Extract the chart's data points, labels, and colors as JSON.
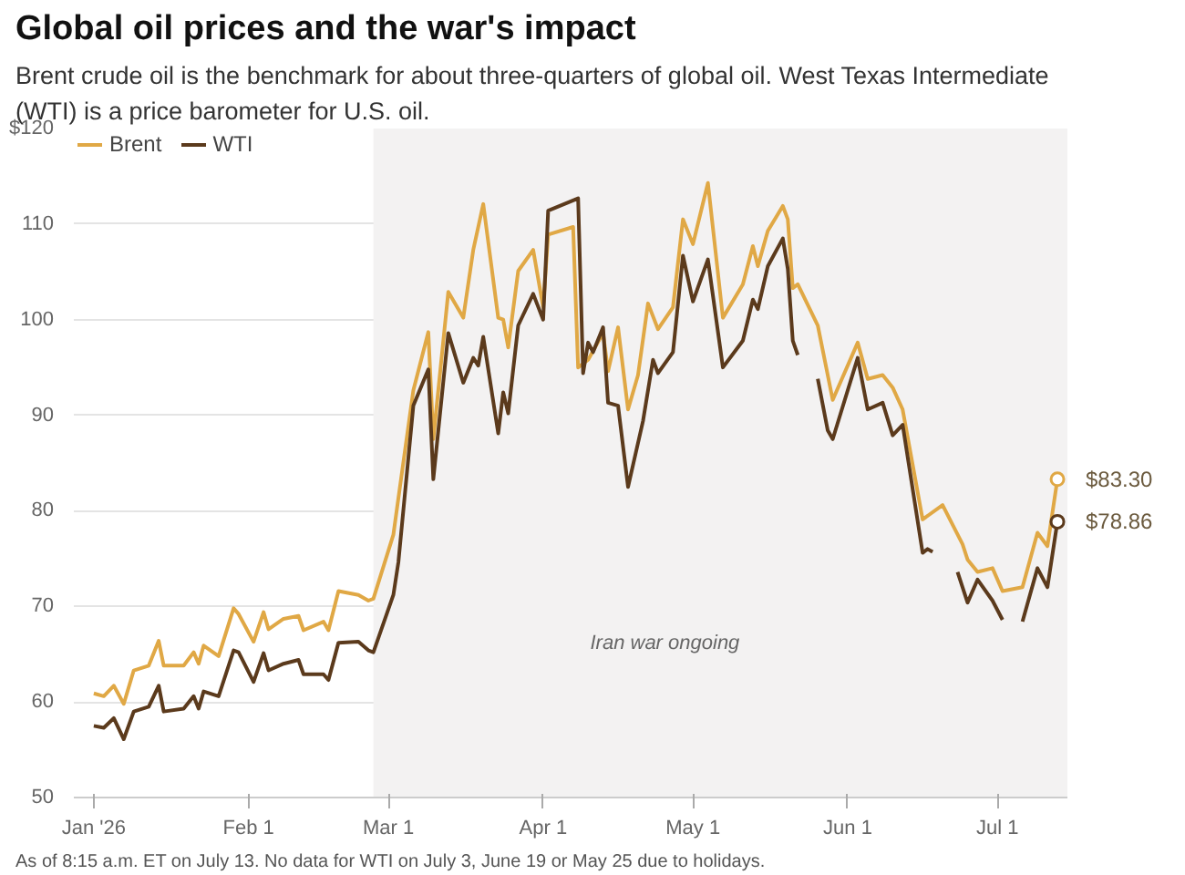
{
  "chart_data": {
    "type": "line",
    "title": "Global oil prices and the war's impact",
    "subtitle": "Brent crude oil is the benchmark for about three-quarters of global oil. West Texas Intermediate (WTI) is a price barometer for U.S. oil.",
    "xlim": [
      "2025-12-28",
      "2026-07-15"
    ],
    "xticks": [
      {
        "value": "2026-01-01",
        "label": "Jan '26"
      },
      {
        "value": "2026-02-01",
        "label": "Feb 1"
      },
      {
        "value": "2026-03-01",
        "label": "Mar 1"
      },
      {
        "value": "2026-04-01",
        "label": "Apr 1"
      },
      {
        "value": "2026-05-01",
        "label": "May 1"
      },
      {
        "value": "2026-06-01",
        "label": "Jun 1"
      },
      {
        "value": "2026-07-01",
        "label": "Jul 1"
      }
    ],
    "ylim": [
      50,
      120
    ],
    "yticks": [
      50,
      60,
      70,
      80,
      90,
      100,
      110,
      {
        "value": 120,
        "label": "$120"
      }
    ],
    "grid": "y",
    "legend": "top left",
    "line_style": "solid",
    "bands": [
      {
        "axis": "x",
        "from": "2026-02-26",
        "to": "2026-07-15",
        "label": "Iran war ongoing",
        "color": "#f3f2f2"
      }
    ],
    "series": [
      {
        "name": "Brent",
        "color": "#e0a845",
        "x": [
          "2026-01-01",
          "2026-01-03",
          "2026-01-05",
          "2026-01-07",
          "2026-01-09",
          "2026-01-12",
          "2026-01-14",
          "2026-01-15",
          "2026-01-19",
          "2026-01-21",
          "2026-01-22",
          "2026-01-23",
          "2026-01-26",
          "2026-01-29",
          "2026-01-30",
          "2026-02-02",
          "2026-02-04",
          "2026-02-05",
          "2026-02-08",
          "2026-02-11",
          "2026-02-12",
          "2026-02-16",
          "2026-02-17",
          "2026-02-19",
          "2026-02-23",
          "2026-02-25",
          "2026-02-26",
          "2026-03-02",
          "2026-03-03",
          "2026-03-06",
          "2026-03-09",
          "2026-03-10",
          "2026-03-13",
          "2026-03-16",
          "2026-03-18",
          "2026-03-20",
          "2026-03-23",
          "2026-03-24",
          "2026-03-25",
          "2026-03-27",
          "2026-03-30",
          "2026-04-01",
          "2026-04-02",
          "2026-04-07",
          "2026-04-08",
          "2026-04-10",
          "2026-04-13",
          "2026-04-14",
          "2026-04-16",
          "2026-04-18",
          "2026-04-20",
          "2026-04-22",
          "2026-04-24",
          "2026-04-27",
          "2026-04-29",
          "2026-05-01",
          "2026-05-04",
          "2026-05-07",
          "2026-05-11",
          "2026-05-13",
          "2026-05-14",
          "2026-05-16",
          "2026-05-19",
          "2026-05-20",
          "2026-05-21",
          "2026-05-22",
          "2026-05-26",
          "2026-05-29",
          "2026-06-03",
          "2026-06-05",
          "2026-06-08",
          "2026-06-10",
          "2026-06-12",
          "2026-06-16",
          "2026-06-20",
          "2026-06-24",
          "2026-06-25",
          "2026-06-27",
          "2026-06-30",
          "2026-07-02",
          "2026-07-06",
          "2026-07-09",
          "2026-07-11",
          "2026-07-13"
        ],
        "values": [
          60.9,
          60.6,
          61.7,
          59.8,
          63.3,
          63.8,
          66.4,
          63.8,
          63.8,
          65.2,
          64.0,
          65.9,
          64.8,
          69.8,
          69.2,
          66.3,
          69.4,
          67.6,
          68.7,
          69.0,
          67.5,
          68.4,
          67.5,
          71.6,
          71.2,
          70.6,
          70.8,
          77.5,
          81.3,
          92.6,
          98.7,
          87.5,
          102.9,
          100.2,
          107.3,
          112.1,
          100.2,
          100.0,
          97.1,
          105.1,
          107.3,
          101.3,
          108.9,
          109.7,
          95.0,
          95.8,
          98.6,
          94.6,
          99.2,
          90.6,
          94.2,
          101.7,
          99.0,
          101.3,
          110.5,
          107.9,
          114.3,
          100.2,
          103.7,
          107.7,
          105.6,
          109.3,
          111.9,
          110.5,
          103.3,
          103.7,
          99.4,
          91.6,
          97.6,
          93.8,
          94.2,
          92.9,
          90.6,
          79.1,
          80.6,
          76.5,
          74.9,
          73.6,
          74.0,
          71.6,
          72.0,
          77.7,
          76.3,
          83.3
        ]
      },
      {
        "name": "WTI",
        "color": "#5b3a1c",
        "x": [
          "2026-01-01",
          "2026-01-03",
          "2026-01-05",
          "2026-01-07",
          "2026-01-09",
          "2026-01-12",
          "2026-01-14",
          "2026-01-15",
          "2026-01-19",
          "2026-01-21",
          "2026-01-22",
          "2026-01-23",
          "2026-01-26",
          "2026-01-29",
          "2026-01-30",
          "2026-02-02",
          "2026-02-04",
          "2026-02-05",
          "2026-02-08",
          "2026-02-11",
          "2026-02-12",
          "2026-02-16",
          "2026-02-17",
          "2026-02-19",
          "2026-02-23",
          "2026-02-25",
          "2026-02-26",
          "2026-03-02",
          "2026-03-03",
          "2026-03-06",
          "2026-03-09",
          "2026-03-10",
          "2026-03-13",
          "2026-03-16",
          "2026-03-18",
          "2026-03-19",
          "2026-03-20",
          "2026-03-23",
          "2026-03-24",
          "2026-03-25",
          "2026-03-27",
          "2026-03-30",
          "2026-04-01",
          "2026-04-02",
          "2026-04-08",
          "2026-04-09",
          "2026-04-10",
          "2026-04-11",
          "2026-04-13",
          "2026-04-14",
          "2026-04-16",
          "2026-04-18",
          "2026-04-21",
          "2026-04-23",
          "2026-04-24",
          "2026-04-27",
          "2026-04-29",
          "2026-05-01",
          "2026-05-04",
          "2026-05-07",
          "2026-05-11",
          "2026-05-13",
          "2026-05-14",
          "2026-05-16",
          "2026-05-19",
          "2026-05-20",
          "2026-05-21",
          "2026-05-22",
          "2026-05-25",
          "2026-05-26",
          "2026-05-28",
          "2026-05-29",
          "2026-06-03",
          "2026-06-05",
          "2026-06-08",
          "2026-06-10",
          "2026-06-12",
          "2026-06-16",
          "2026-06-17",
          "2026-06-18",
          "2026-06-19",
          "2026-06-23",
          "2026-06-25",
          "2026-06-27",
          "2026-06-30",
          "2026-07-02",
          "2026-07-03",
          "2026-07-06",
          "2026-07-09",
          "2026-07-11",
          "2026-07-13"
        ],
        "values": [
          57.5,
          57.3,
          58.3,
          56.1,
          59.0,
          59.5,
          61.7,
          59.0,
          59.3,
          60.6,
          59.3,
          61.1,
          60.6,
          65.4,
          65.2,
          62.1,
          65.1,
          63.3,
          64.0,
          64.4,
          62.9,
          62.9,
          62.3,
          66.2,
          66.3,
          65.4,
          65.2,
          71.2,
          74.6,
          91.0,
          94.8,
          83.3,
          98.6,
          93.4,
          96.0,
          95.2,
          98.2,
          88.1,
          92.4,
          90.2,
          99.4,
          102.7,
          100.0,
          111.4,
          112.7,
          94.4,
          97.6,
          96.6,
          99.2,
          91.3,
          91.0,
          82.5,
          89.4,
          95.8,
          94.4,
          96.6,
          106.7,
          101.9,
          106.3,
          95.0,
          97.8,
          102.1,
          101.1,
          105.6,
          108.5,
          105.3,
          97.8,
          96.3,
          null,
          93.8,
          88.4,
          87.5,
          96.0,
          90.6,
          91.3,
          87.9,
          89.0,
          75.6,
          76.0,
          75.7,
          null,
          73.6,
          70.4,
          72.8,
          70.6,
          68.6,
          null,
          68.4,
          74.0,
          72.0,
          78.86
        ]
      }
    ],
    "annotations": [
      {
        "text": "$83.30",
        "x": "2026-07-13",
        "y": 83.3
      },
      {
        "text": "$78.86",
        "x": "2026-07-13",
        "y": 78.86
      },
      "As of 8:15 a.m. ET on July 13. No data for WTI on July 3, June 19 or May 25 due to holidays."
    ]
  }
}
